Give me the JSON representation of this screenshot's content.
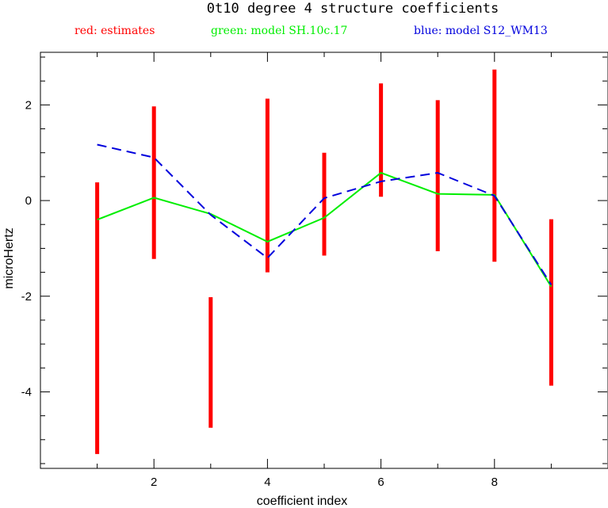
{
  "chart_data": {
    "type": "line",
    "title": "0t10 degree 4 structure coefficients",
    "legend": [
      {
        "label": "red: estimates",
        "color": "#ff0000"
      },
      {
        "label": "green: model SH.10c.17",
        "color": "#00ee00"
      },
      {
        "label": "blue: model S12_WM13",
        "color": "#0000dd"
      }
    ],
    "xlabel": "coefficient index",
    "ylabel": "microHertz",
    "xlim": [
      0,
      10
    ],
    "ylim": [
      -5.6,
      3.1
    ],
    "xticks_major": [
      2,
      4,
      6,
      8
    ],
    "yticks_major": [
      -4,
      -2,
      0,
      2
    ],
    "x_tick_labels": [
      "2",
      "4",
      "6",
      "8"
    ],
    "y_tick_labels": [
      "-4",
      "-2",
      "0",
      "2"
    ],
    "estimates": [
      {
        "x": 1,
        "low": -5.3,
        "high": 0.38
      },
      {
        "x": 2,
        "low": -1.22,
        "high": 1.97
      },
      {
        "x": 3,
        "low": -4.75,
        "high": -2.02
      },
      {
        "x": 4,
        "low": -1.5,
        "high": 2.13
      },
      {
        "x": 5,
        "low": -1.15,
        "high": 1.0
      },
      {
        "x": 6,
        "low": 0.08,
        "high": 2.45
      },
      {
        "x": 7,
        "low": -1.06,
        "high": 2.1
      },
      {
        "x": 8,
        "low": -1.28,
        "high": 2.74
      },
      {
        "x": 9,
        "low": -3.87,
        "high": -0.39
      }
    ],
    "series": [
      {
        "name": "model SH.10c.17",
        "color": "#00ee00",
        "style": "solid",
        "x": [
          1,
          2,
          3,
          4,
          5,
          6,
          7,
          8,
          9
        ],
        "values": [
          -0.4,
          0.06,
          -0.28,
          -0.86,
          -0.36,
          0.58,
          0.14,
          0.12,
          -1.8
        ]
      },
      {
        "name": "model S12_WM13",
        "color": "#0000dd",
        "style": "dashed",
        "x": [
          1,
          2,
          3,
          4,
          5,
          6,
          7,
          8,
          9
        ],
        "values": [
          1.17,
          0.9,
          -0.3,
          -1.2,
          0.05,
          0.4,
          0.58,
          0.1,
          -1.76
        ]
      }
    ]
  }
}
